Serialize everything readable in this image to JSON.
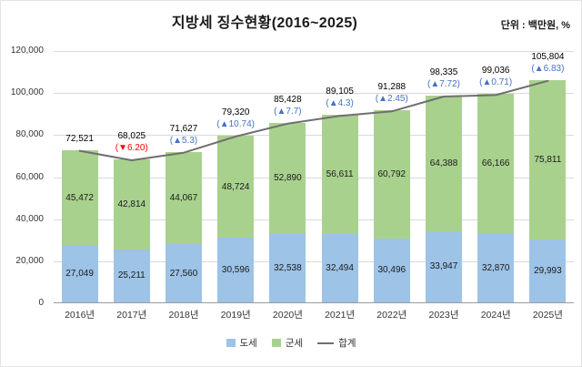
{
  "header": {
    "title": "지방세 징수현황(2016~2025)",
    "unit_label": "단위 : 백만원, %"
  },
  "chart_data": {
    "type": "bar",
    "stacked": true,
    "title": "지방세 징수현황(2016~2025)",
    "unit": "백만원, %",
    "categories": [
      "2016년",
      "2017년",
      "2018년",
      "2019년",
      "2020년",
      "2021년",
      "2022년",
      "2023년",
      "2024년",
      "2025년"
    ],
    "series": [
      {
        "name": "도세",
        "color": "#9DC3E6",
        "values": [
          27049,
          25211,
          27560,
          30596,
          32538,
          32494,
          30496,
          33947,
          32870,
          29993
        ]
      },
      {
        "name": "군세",
        "color": "#A9D18E",
        "values": [
          45472,
          42814,
          44067,
          48724,
          52890,
          56611,
          60792,
          64388,
          66166,
          75811
        ]
      }
    ],
    "line_series": {
      "name": "합계",
      "color": "#6F6F6F",
      "values": [
        72521,
        68025,
        71627,
        79320,
        85428,
        89105,
        91288,
        98335,
        99036,
        105804
      ]
    },
    "pct_labels": [
      null,
      {
        "text": "(▼6.20)",
        "color": "#FF0000"
      },
      {
        "text": "(▲5.3)",
        "color": "#4472C4"
      },
      {
        "text": "(▲10.74)",
        "color": "#4472C4"
      },
      {
        "text": "(▲7.7)",
        "color": "#4472C4"
      },
      {
        "text": "(▲4.3)",
        "color": "#4472C4"
      },
      {
        "text": "(▲2.45)",
        "color": "#4472C4"
      },
      {
        "text": "(▲7.72)",
        "color": "#4472C4"
      },
      {
        "text": "(▲0.71)",
        "color": "#4472C4"
      },
      {
        "text": "(▲6.83)",
        "color": "#4472C4"
      }
    ],
    "ylim": [
      0,
      120000
    ],
    "yticks": [
      "0",
      "20,000",
      "40,000",
      "60,000",
      "80,000",
      "100,000",
      "120,000"
    ],
    "grid": true,
    "legend_position": "bottom"
  }
}
